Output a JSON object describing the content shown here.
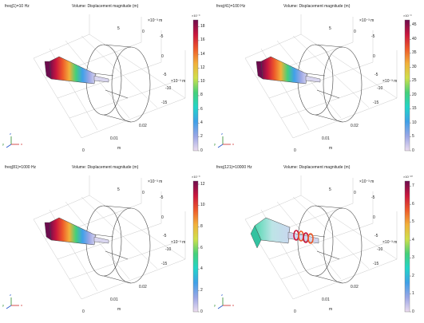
{
  "panels": [
    {
      "freq_label": "freq(1)=10 Hz",
      "title": "Volume: Displacement magnitude (m)",
      "cb_exponent": "×10⁻⁹",
      "cb_ticks": [
        "18",
        "16",
        "14",
        "12",
        "10",
        "8",
        "6",
        "4",
        "2",
        "0"
      ],
      "cb_max": 19,
      "axis_labels": {
        "z_exp": "×10⁻³ m",
        "z5": "5",
        "z0": "0",
        "zm5": "-5",
        "y0": "0",
        "ym5": "-5",
        "ym10": "-10",
        "ym15": "-15",
        "y_exp": "×10⁻³ m",
        "x002": "0.02",
        "x001": "0.01",
        "xm": "m",
        "x0": "0"
      },
      "triad": {
        "y": "y",
        "z": "z",
        "x": "x"
      },
      "style": "rainbow-head"
    },
    {
      "freq_label": "freq(41)=100 Hz",
      "title": "Volume: Displacement magnitude (m)",
      "cb_exponent": "×10⁻⁹",
      "cb_ticks": [
        "45",
        "40",
        "35",
        "30",
        "25",
        "20",
        "15",
        "10",
        "5",
        "0"
      ],
      "cb_max": 47,
      "axis_labels": {
        "z_exp": "×10⁻³ m",
        "z5": "5",
        "z0": "0",
        "zm5": "-5",
        "y0": "0",
        "ym5": "-5",
        "ym10": "-10",
        "ym15": "-15",
        "y_exp": "×10⁻³ m",
        "x002": "0.02",
        "x001": "0.01",
        "xm": "m",
        "x0": "0"
      },
      "triad": {
        "y": "y",
        "z": "z",
        "x": "x"
      },
      "style": "rainbow-head"
    },
    {
      "freq_label": "freq(81)=1000 Hz",
      "title": "Volume: Displacement magnitude (m)",
      "cb_exponent": "×10⁻⁹",
      "cb_ticks": [
        "12",
        "10",
        "8",
        "6",
        "4",
        "2",
        "0"
      ],
      "cb_max": 12.3,
      "axis_labels": {
        "z_exp": "×10⁻³ m",
        "z5": "5",
        "z0": "0",
        "zm5": "-5",
        "y0": "0",
        "ym5": "-5",
        "ym10": "-10",
        "ym15": "-15",
        "y_exp": "×10⁻³ m",
        "x002": "0.02",
        "x001": "0.01",
        "xm": "m",
        "x0": "0"
      },
      "triad": {
        "y": "y",
        "z": "z",
        "x": "x"
      },
      "style": "rainbow-head"
    },
    {
      "freq_label": "freq(121)=10000 Hz",
      "title": "Volume: Displacement magnitude (m)",
      "cb_exponent": "×10⁻¹⁰",
      "cb_ticks": [
        "7",
        "6",
        "5",
        "4",
        "3",
        "2",
        "1",
        "0"
      ],
      "cb_max": 7.3,
      "axis_labels": {
        "z_exp": "×10⁻³ m",
        "z5": "5",
        "z0": "0",
        "zm5": "-5",
        "y0": "0",
        "ym5": "-5",
        "ym10": "-10",
        "ym15": "-15",
        "y_exp": "×10⁻³ m",
        "x002": "0.02",
        "x001": "0.01",
        "xm": "m",
        "x0": "0"
      },
      "triad": {
        "y": "y",
        "z": "z",
        "x": "x"
      },
      "style": "green-head"
    }
  ],
  "colors": {
    "colormap": [
      "#ecdcef",
      "#9aa6e6",
      "#3fa0e8",
      "#22d4c8",
      "#44d07a",
      "#cfe04a",
      "#f2b03a",
      "#ee5a2a",
      "#c9163e",
      "#6d0c4e"
    ],
    "wire": "#444444",
    "grid": "#bdbdbd"
  }
}
